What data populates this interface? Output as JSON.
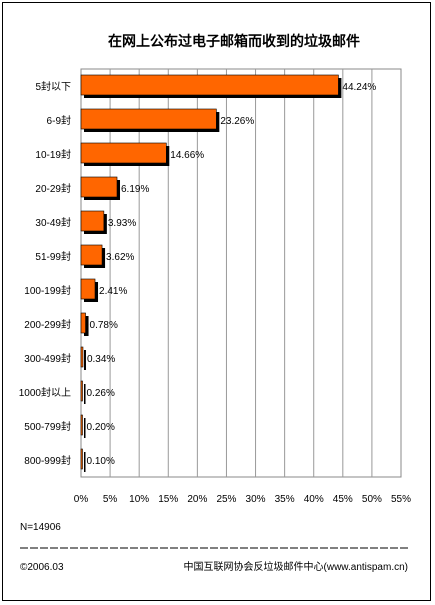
{
  "chart_data": {
    "type": "bar",
    "orientation": "horizontal",
    "title": "在网上公布过电子邮箱而收到的垃圾邮件",
    "categories": [
      "5封以下",
      "6-9封",
      "10-19封",
      "20-29封",
      "30-49封",
      "51-99封",
      "100-199封",
      "200-299封",
      "300-499封",
      "1000封以上",
      "500-799封",
      "800-999封"
    ],
    "values": [
      44.24,
      23.26,
      14.66,
      6.19,
      3.93,
      3.62,
      2.41,
      0.78,
      0.34,
      0.26,
      0.2,
      0.1
    ],
    "value_labels": [
      "44.24%",
      "23.26%",
      "14.66%",
      "6.19%",
      "3.93%",
      "3.62%",
      "2.41%",
      "0.78%",
      "0.34%",
      "0.26%",
      "0.20%",
      "0.10%"
    ],
    "xlim": [
      0,
      55
    ],
    "xticks": [
      "0%",
      "5%",
      "10%",
      "15%",
      "20%",
      "25%",
      "30%",
      "35%",
      "40%",
      "45%",
      "50%",
      "55%"
    ],
    "grid": true,
    "bar_color": "#ff6600",
    "shadow_color": "#000000"
  },
  "footer": {
    "sample": "N=14906",
    "copyright": "©2006.03",
    "source": "中国互联网协会反垃圾邮件中心(www.antispam.cn)"
  }
}
